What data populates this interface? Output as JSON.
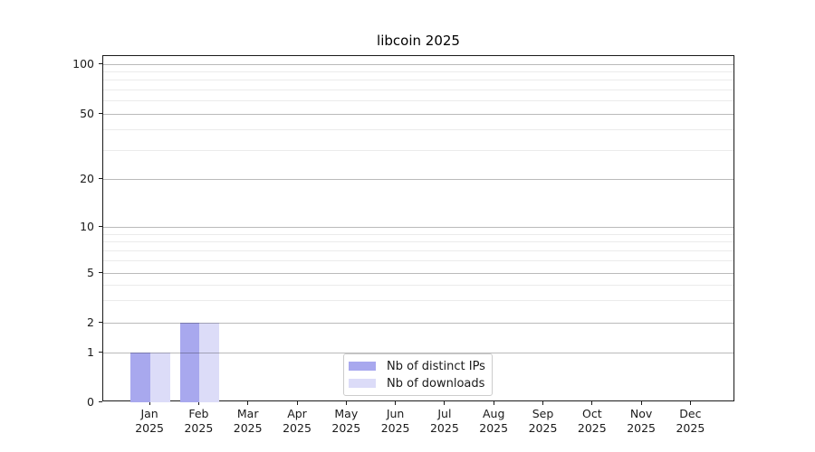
{
  "figure": {
    "background": "#ffffff",
    "title": "libcoin 2025"
  },
  "chart_data": {
    "type": "bar",
    "title": "libcoin 2025",
    "categories": [
      "Jan",
      "Feb",
      "Mar",
      "Apr",
      "May",
      "Jun",
      "Jul",
      "Aug",
      "Sep",
      "Oct",
      "Nov",
      "Dec"
    ],
    "category_year": "2025",
    "series": [
      {
        "name": "Nb of distinct IPs",
        "color": "#a8a8ee",
        "values": [
          1,
          2,
          0,
          0,
          0,
          0,
          0,
          0,
          0,
          0,
          0,
          0
        ]
      },
      {
        "name": "Nb of downloads",
        "color": "#dcdcf8",
        "values": [
          1,
          2,
          0,
          0,
          0,
          0,
          0,
          0,
          0,
          0,
          0,
          0
        ]
      }
    ],
    "y_axis": {
      "scale": "symlog",
      "ticks": [
        0,
        1,
        2,
        5,
        10,
        20,
        50,
        100
      ],
      "minor_ticks": [
        3,
        4,
        6,
        7,
        8,
        9,
        30,
        40,
        60,
        70,
        80,
        90
      ],
      "ylim_bottom": 0,
      "ylim_top_approx": 112
    },
    "x_axis": {
      "tick_label_lines": 2
    },
    "grid": {
      "major": true,
      "minor": true,
      "drawn_over_bars": true
    },
    "legend": {
      "position": "lower-center",
      "border_color": "#cccccc"
    },
    "colors": {
      "frame": "#1a1a1a",
      "major_grid": "rgba(0,0,0,0.27)",
      "minor_grid": "rgba(0,0,0,0.08)",
      "title_color": "#000000"
    }
  }
}
